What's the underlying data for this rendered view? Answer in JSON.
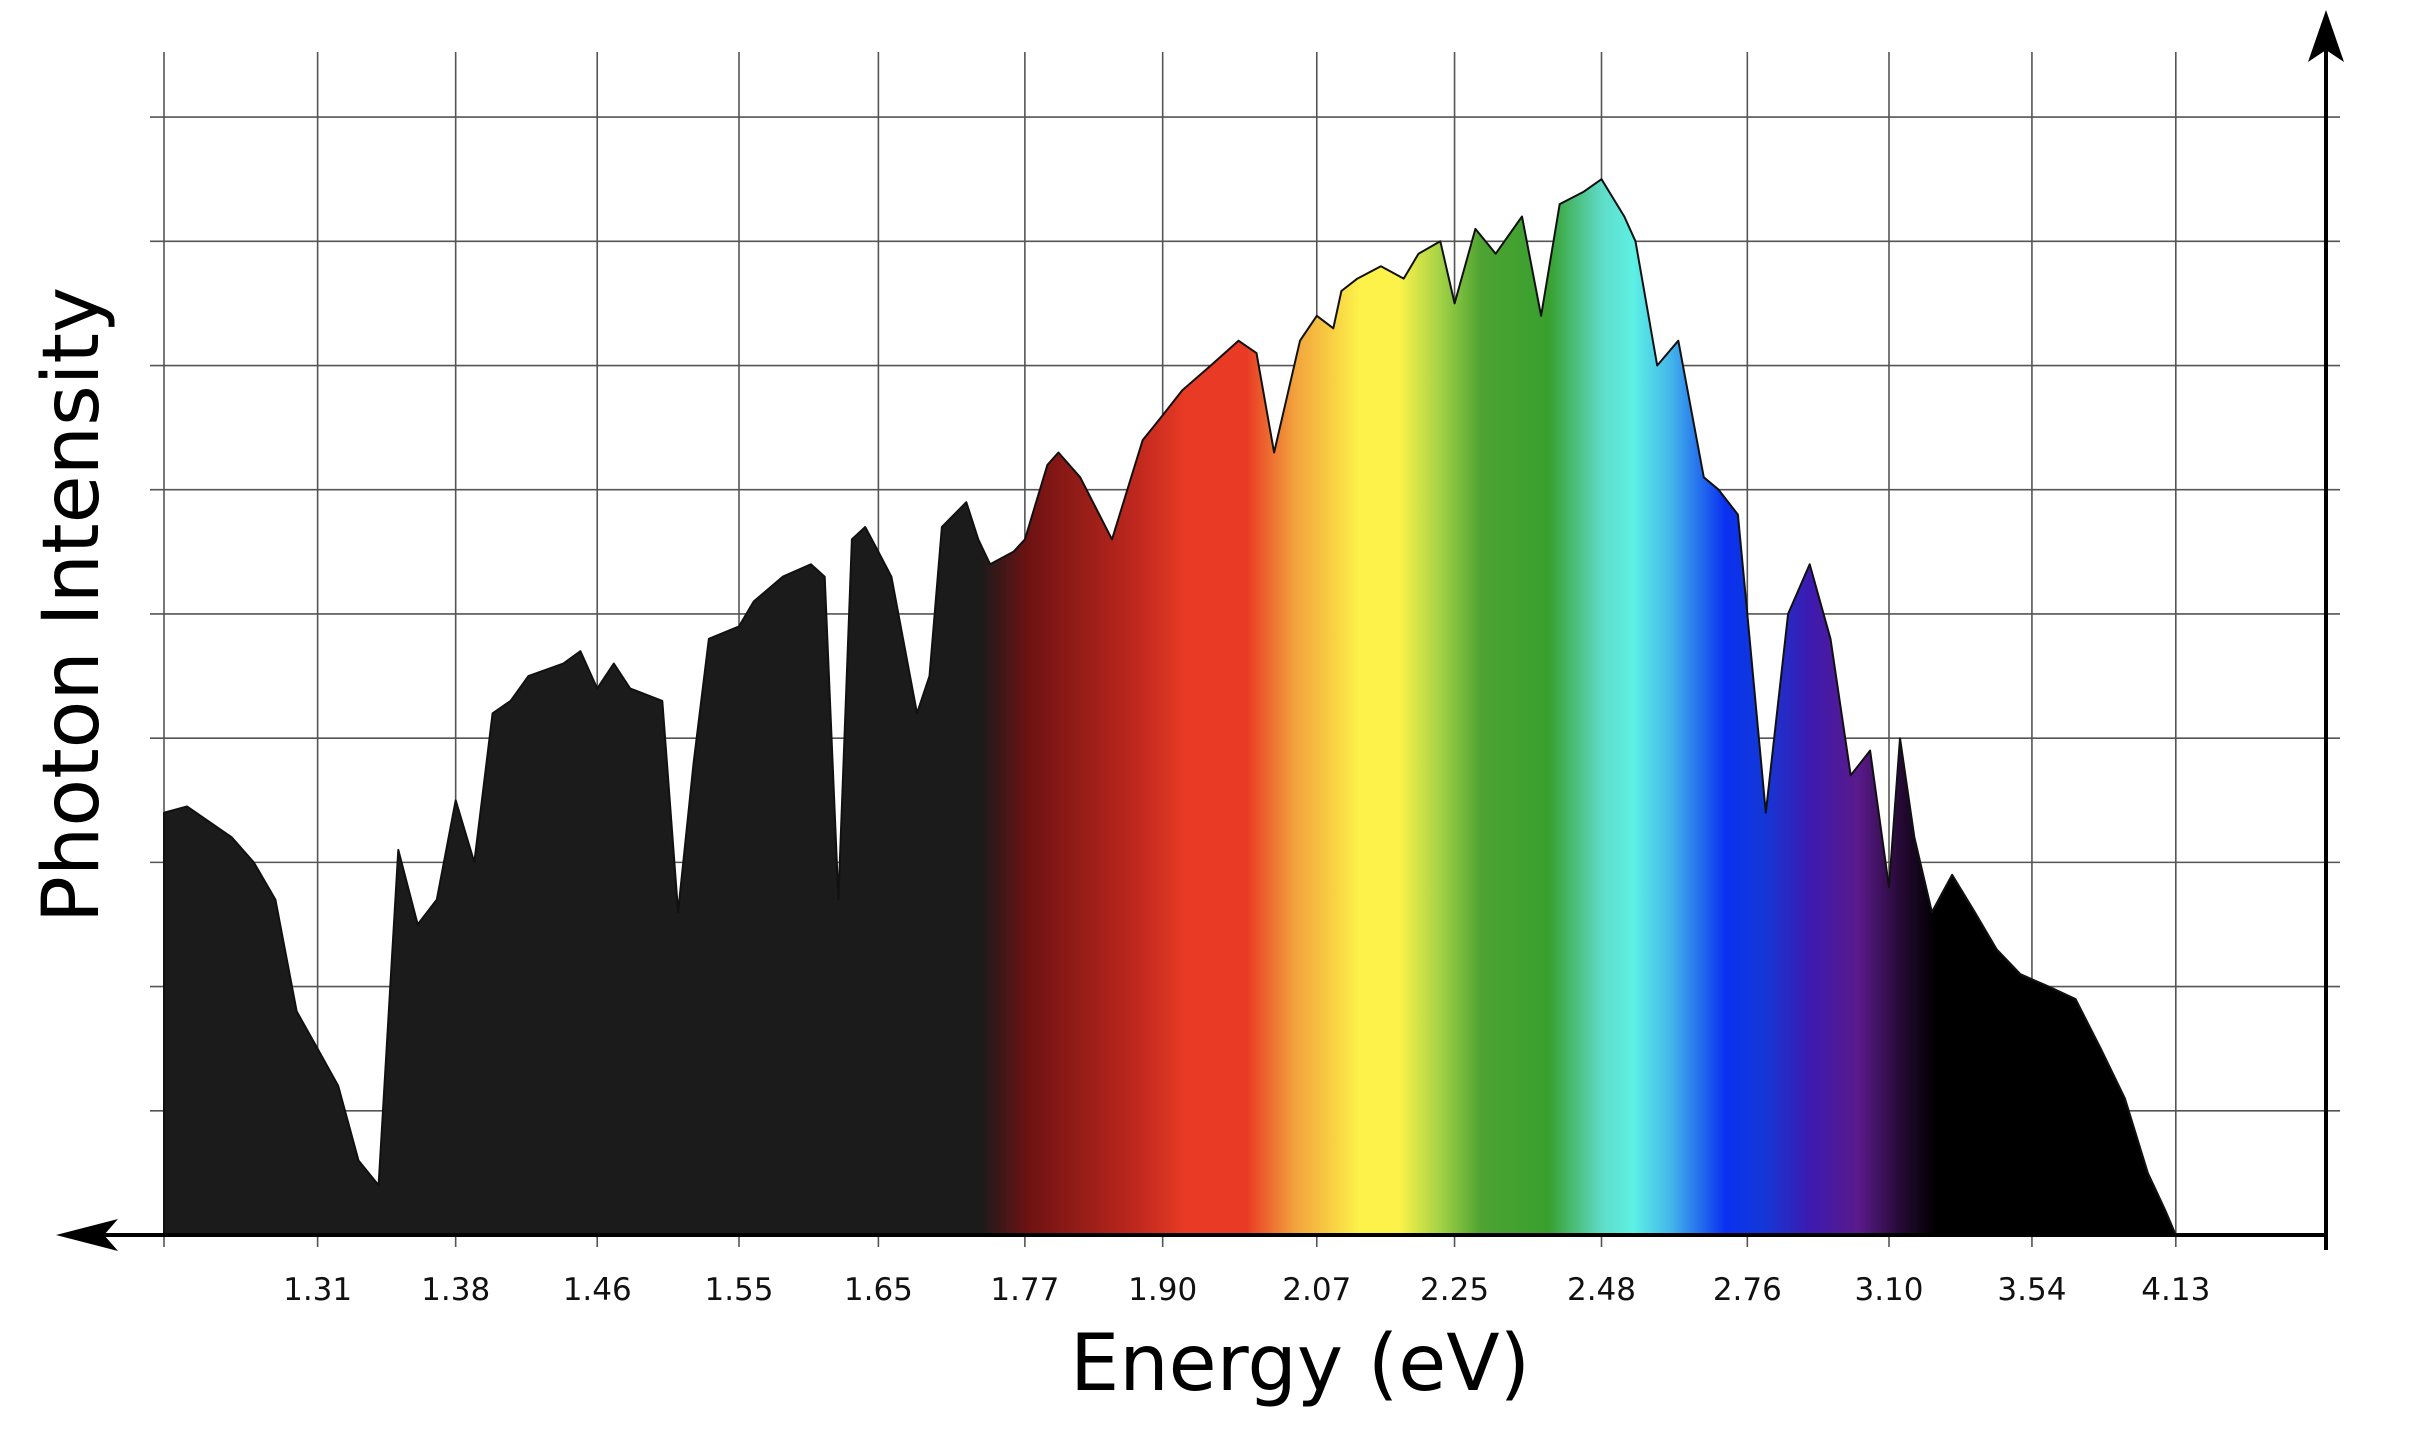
{
  "chart_data": {
    "type": "area",
    "xlabel": "Energy (eV)",
    "ylabel": "Photon Intensity",
    "x_tick_labels": [
      "1.31",
      "1.38",
      "1.46",
      "1.55",
      "1.65",
      "1.77",
      "1.90",
      "2.07",
      "2.25",
      "2.48",
      "2.76",
      "3.10",
      "3.54",
      "4.13"
    ],
    "x_axis": {
      "scale": "reciprocal",
      "xlim": [
        1.24,
        5.0
      ],
      "direction": "increasing to the right",
      "arrows": "both ends"
    },
    "y_axis": {
      "relative_units": true,
      "ylim": [
        0,
        9.5
      ],
      "gridlines_every": 1,
      "tick_labels_shown": false
    },
    "grid": true,
    "fill": {
      "dark_color": "#1b1b1b",
      "visible_spectrum_colored": true,
      "spectrum_colors": [
        "#1b1b1b",
        "#6e1212",
        "#c0281e",
        "#e83a24",
        "#f2a23c",
        "#fdf24a",
        "#9fd045",
        "#38a02e",
        "#5fdcc8",
        "#44b8ea",
        "#0a30f0",
        "#3d1ab0",
        "#5a1a8a",
        "#000000"
      ]
    },
    "x": [
      1.24,
      1.25,
      1.27,
      1.28,
      1.29,
      1.3,
      1.31,
      1.32,
      1.33,
      1.34,
      1.35,
      1.36,
      1.37,
      1.38,
      1.39,
      1.4,
      1.41,
      1.42,
      1.44,
      1.45,
      1.46,
      1.47,
      1.48,
      1.5,
      1.51,
      1.52,
      1.53,
      1.55,
      1.56,
      1.58,
      1.6,
      1.61,
      1.62,
      1.63,
      1.64,
      1.65,
      1.66,
      1.68,
      1.69,
      1.7,
      1.72,
      1.73,
      1.74,
      1.76,
      1.77,
      1.79,
      1.8,
      1.82,
      1.85,
      1.88,
      1.89,
      1.9,
      1.92,
      1.95,
      1.98,
      2.0,
      2.02,
      2.05,
      2.07,
      2.09,
      2.1,
      2.12,
      2.15,
      2.18,
      2.2,
      2.23,
      2.25,
      2.28,
      2.31,
      2.35,
      2.38,
      2.41,
      2.45,
      2.48,
      2.52,
      2.54,
      2.58,
      2.62,
      2.67,
      2.7,
      2.74,
      2.76,
      2.8,
      2.85,
      2.9,
      2.95,
      3.0,
      3.05,
      3.1,
      3.13,
      3.17,
      3.22,
      3.28,
      3.35,
      3.42,
      3.5,
      3.6,
      3.7,
      3.8,
      3.9,
      4.0,
      4.08,
      4.13,
      4.2,
      4.3,
      4.5,
      4.8
    ],
    "y": [
      3.4,
      3.45,
      3.2,
      3.0,
      2.7,
      1.8,
      1.5,
      1.2,
      0.6,
      0.4,
      3.1,
      2.5,
      2.7,
      3.5,
      3.0,
      4.2,
      4.3,
      4.5,
      4.6,
      4.7,
      4.4,
      4.6,
      4.4,
      4.3,
      2.6,
      3.8,
      4.8,
      4.9,
      5.1,
      5.3,
      5.4,
      5.3,
      2.7,
      5.6,
      5.7,
      5.5,
      5.3,
      4.2,
      4.5,
      5.7,
      5.9,
      5.6,
      5.4,
      5.5,
      5.6,
      6.2,
      6.3,
      6.1,
      5.6,
      6.4,
      6.5,
      6.6,
      6.8,
      7.0,
      7.2,
      7.1,
      6.3,
      7.2,
      7.4,
      7.3,
      7.6,
      7.7,
      7.8,
      7.7,
      7.9,
      8.0,
      7.5,
      8.1,
      7.9,
      8.2,
      7.4,
      8.3,
      8.4,
      8.5,
      8.2,
      8.0,
      7.0,
      7.2,
      6.1,
      6.0,
      5.8,
      5.0,
      3.4,
      5.0,
      5.4,
      4.8,
      3.7,
      3.9,
      2.8,
      4.0,
      3.2,
      2.6,
      2.9,
      2.6,
      2.3,
      2.1,
      2.0,
      1.9,
      1.5,
      1.1,
      0.5,
      0.2,
      0.0,
      0.0,
      0.0,
      0.0,
      0.0
    ]
  }
}
